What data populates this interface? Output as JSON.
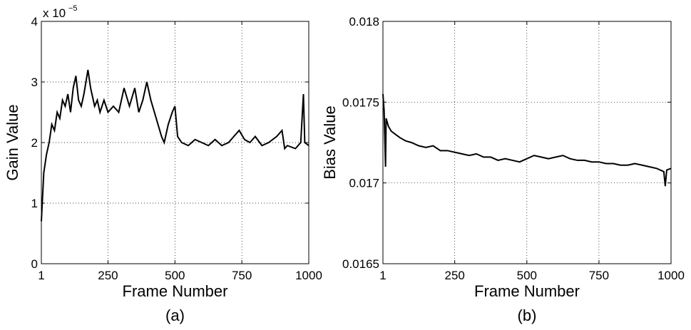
{
  "chart_data": [
    {
      "type": "line",
      "caption": "(a)",
      "x_label": "Frame Number",
      "y_label": "Gain Value",
      "y_scale_label": "x 10",
      "y_scale_exponent": "−5",
      "xlim": [
        1,
        1000
      ],
      "xticks": [
        1,
        250,
        500,
        750,
        1000
      ],
      "ylim": [
        0,
        4
      ],
      "yticks": [
        0,
        1,
        2,
        3,
        4
      ],
      "grid": true,
      "series": [
        {
          "color": "#000000",
          "x": [
            1,
            10,
            20,
            30,
            40,
            50,
            60,
            70,
            80,
            90,
            100,
            110,
            120,
            130,
            140,
            150,
            160,
            175,
            185,
            200,
            210,
            220,
            235,
            250,
            270,
            290,
            310,
            330,
            350,
            365,
            380,
            395,
            410,
            430,
            450,
            460,
            475,
            490,
            500,
            510,
            525,
            550,
            575,
            600,
            625,
            650,
            675,
            700,
            720,
            740,
            760,
            780,
            800,
            825,
            850,
            880,
            900,
            910,
            920,
            950,
            970,
            980,
            985,
            1000
          ],
          "values": [
            0.7,
            1.5,
            1.8,
            2.0,
            2.3,
            2.2,
            2.5,
            2.4,
            2.7,
            2.6,
            2.8,
            2.5,
            2.9,
            3.1,
            2.7,
            2.6,
            2.8,
            3.2,
            2.9,
            2.6,
            2.7,
            2.5,
            2.7,
            2.5,
            2.6,
            2.5,
            2.9,
            2.6,
            2.9,
            2.5,
            2.7,
            3.0,
            2.7,
            2.4,
            2.1,
            2.0,
            2.3,
            2.5,
            2.6,
            2.1,
            2.0,
            1.95,
            2.05,
            2.0,
            1.95,
            2.05,
            1.95,
            2.0,
            2.1,
            2.2,
            2.05,
            2.0,
            2.1,
            1.95,
            2.0,
            2.1,
            2.2,
            1.9,
            1.95,
            1.9,
            2.0,
            2.8,
            2.0,
            1.95
          ]
        }
      ]
    },
    {
      "type": "line",
      "caption": "(b)",
      "x_label": "Frame Number",
      "y_label": "Bias Value",
      "xlim": [
        1,
        1000
      ],
      "xticks": [
        1,
        250,
        500,
        750,
        1000
      ],
      "ylim": [
        0.0165,
        0.018
      ],
      "yticks": [
        0.0165,
        0.017,
        0.0175,
        0.018
      ],
      "grid": true,
      "series": [
        {
          "color": "#000000",
          "x": [
            1,
            5,
            10,
            12,
            20,
            30,
            45,
            60,
            80,
            100,
            125,
            150,
            175,
            200,
            225,
            250,
            275,
            300,
            325,
            350,
            375,
            400,
            425,
            450,
            475,
            500,
            525,
            550,
            575,
            600,
            625,
            650,
            675,
            700,
            725,
            750,
            775,
            800,
            825,
            850,
            875,
            900,
            925,
            950,
            975,
            980,
            985,
            1000
          ],
          "values": [
            0.01755,
            0.01745,
            0.0171,
            0.0174,
            0.01735,
            0.01732,
            0.0173,
            0.01728,
            0.01726,
            0.01725,
            0.01723,
            0.01722,
            0.01723,
            0.0172,
            0.0172,
            0.01719,
            0.01718,
            0.01717,
            0.01718,
            0.01716,
            0.01716,
            0.01714,
            0.01715,
            0.01714,
            0.01713,
            0.01715,
            0.01717,
            0.01716,
            0.01715,
            0.01716,
            0.01717,
            0.01715,
            0.01714,
            0.01714,
            0.01713,
            0.01713,
            0.01712,
            0.01712,
            0.01711,
            0.01711,
            0.01712,
            0.01711,
            0.0171,
            0.01709,
            0.01707,
            0.01698,
            0.01708,
            0.01709
          ]
        }
      ]
    }
  ]
}
